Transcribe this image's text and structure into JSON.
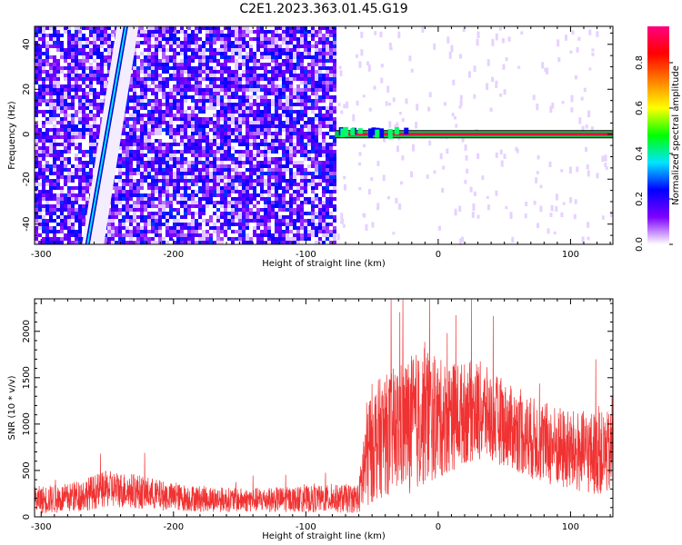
{
  "title": "C2E1.2023.363.01.45.G19",
  "chart_data": [
    {
      "type": "heatmap",
      "xlabel": "Height of straight line (km)",
      "ylabel": "Frequency (Hz)",
      "xlim": [
        -305,
        132
      ],
      "ylim": [
        -49,
        48
      ],
      "x_ticks": [
        -300,
        -200,
        -100,
        0,
        100
      ],
      "y_ticks": [
        -40,
        -20,
        0,
        20,
        40
      ],
      "colorbar": {
        "label": "Normalized spectral amplitude",
        "range": [
          0.0,
          0.96
        ],
        "ticks": [
          0.0,
          0.2,
          0.4,
          0.6,
          0.8
        ],
        "colors": [
          "#ffffff",
          "#7f00ff",
          "#0000ff",
          "#00e5ff",
          "#00ff00",
          "#ffff00",
          "#ff8000",
          "#ff0000",
          "#ff0080"
        ]
      },
      "noise_region_x": [
        -305,
        -77
      ],
      "carrier": {
        "x_start": -78,
        "x_end": 132,
        "frequency": 0,
        "amplitude": 0.9
      },
      "chirp_line": {
        "x": [
          -265,
          -236
        ],
        "y": [
          -49,
          48
        ]
      }
    },
    {
      "type": "line",
      "xlabel": "Height of straight line (km)",
      "ylabel": "SNR (10 * v/v)",
      "xlim": [
        -305,
        132
      ],
      "ylim": [
        0,
        2350
      ],
      "x_ticks": [
        -300,
        -200,
        -100,
        0,
        100
      ],
      "y_ticks": [
        0,
        500,
        1000,
        1500,
        2000
      ],
      "series": [
        {
          "color": "#f03232",
          "envelope_x": [
            -305,
            -280,
            -250,
            -230,
            -200,
            -150,
            -100,
            -60,
            -55,
            -50,
            -40,
            -30,
            -20,
            -10,
            0,
            20,
            30,
            50,
            70,
            100,
            132
          ],
          "envelope_mean": [
            180,
            200,
            300,
            280,
            210,
            180,
            190,
            200,
            600,
            800,
            880,
            960,
            1000,
            1080,
            1050,
            1120,
            1150,
            1000,
            850,
            700,
            680
          ],
          "envelope_spread": [
            150,
            160,
            200,
            190,
            150,
            130,
            140,
            160,
            600,
            650,
            650,
            700,
            750,
            750,
            650,
            550,
            550,
            450,
            450,
            450,
            450
          ]
        }
      ]
    }
  ]
}
